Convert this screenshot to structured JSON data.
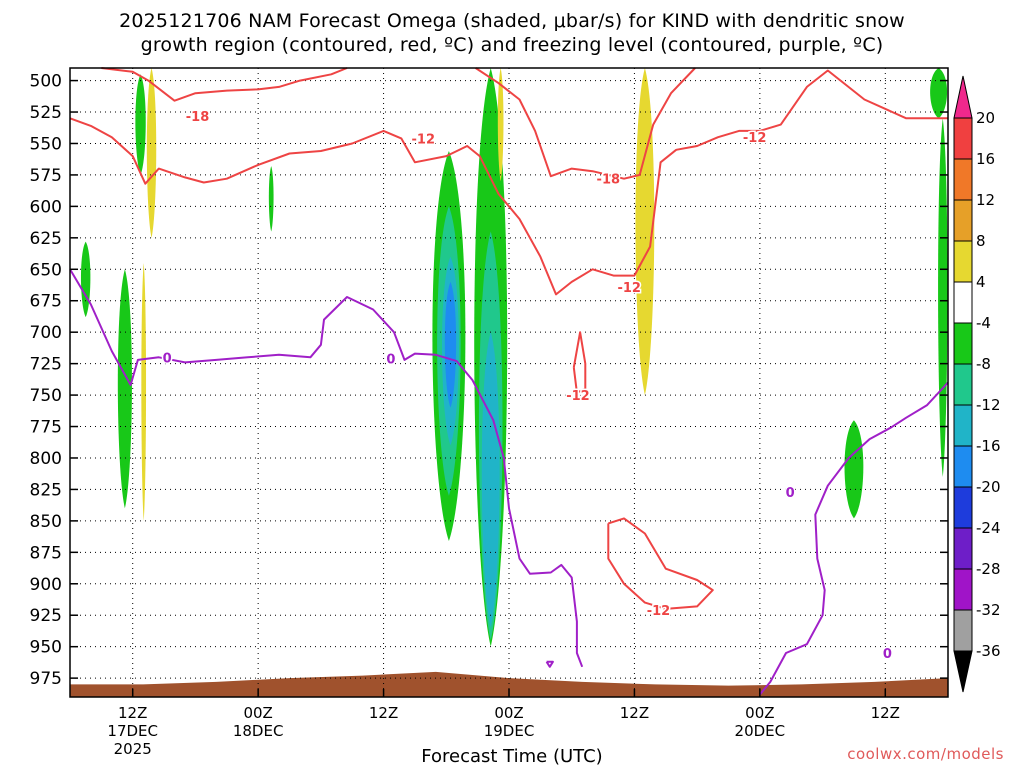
{
  "title_line1": "2025121706 NAM Forecast Omega (shaded, μbar/s) for KIND with dendritic snow",
  "title_line2": "growth region (contoured, red, ºC) and freezing level (contoured, purple, ºC)",
  "credit": "coolwx.com/models",
  "chart_data": {
    "type": "heatmap",
    "title": "2025121706 NAM Forecast Omega (shaded, μbar/s) for KIND with dendritic snow growth region (contoured, red, ºC) and freezing level (contoured, purple, ºC)",
    "xlabel": "Forecast Time (UTC)",
    "ylabel": "",
    "x_unit": "hours since 2025121706",
    "xlim": [
      0,
      84
    ],
    "ylim": [
      990,
      490
    ],
    "y_scale": "pressure (hPa), inverted",
    "grid": true,
    "y_ticks": [
      500,
      525,
      550,
      575,
      600,
      625,
      650,
      675,
      700,
      725,
      750,
      775,
      800,
      825,
      850,
      875,
      900,
      925,
      950,
      975
    ],
    "x_ticks": [
      {
        "hour": 6,
        "lines": [
          "12Z",
          "17DEC",
          "2025"
        ]
      },
      {
        "hour": 18,
        "lines": [
          "00Z",
          "18DEC"
        ]
      },
      {
        "hour": 30,
        "lines": [
          "12Z"
        ]
      },
      {
        "hour": 42,
        "lines": [
          "00Z",
          "19DEC"
        ]
      },
      {
        "hour": 54,
        "lines": [
          "12Z"
        ]
      },
      {
        "hour": 66,
        "lines": [
          "00Z",
          "20DEC"
        ]
      },
      {
        "hour": 78,
        "lines": [
          "12Z"
        ]
      }
    ],
    "colorbar": {
      "levels": [
        -36,
        -32,
        -28,
        -24,
        -20,
        -16,
        -12,
        -8,
        -4,
        4,
        8,
        12,
        16,
        20
      ],
      "labels": [
        "20",
        "16",
        "12",
        "8",
        "4",
        "-4",
        "-8",
        "-12",
        "-16",
        "-20",
        "-24",
        "-28",
        "-32",
        "-36"
      ],
      "colors": {
        "above_20": "#f0288c",
        "16_20": "#f04040",
        "12_16": "#f07828",
        "8_12": "#e6a028",
        "4_8": "#e6d830",
        "-4_4": "#ffffff",
        "-8_-4": "#18c818",
        "-12_-8": "#20c88c",
        "-16_-12": "#20b4c8",
        "-20_-16": "#1e8cf0",
        "-24_-20": "#1e3cdc",
        "-28_-24": "#6e1ec8",
        "-32_-28": "#a014c8",
        "-36_-32": "#a0a0a0",
        "below_-36": "#000000"
      }
    },
    "omega_regions": [
      {
        "color": "#18c818",
        "x": [
          6.2,
          7.3
        ],
        "p": [
          495,
          575
        ],
        "note": "-4 to -8"
      },
      {
        "color": "#18c818",
        "x": [
          1.0,
          2.0
        ],
        "p": [
          628,
          688
        ]
      },
      {
        "color": "#18c818",
        "x": [
          4.5,
          6.0
        ],
        "p": [
          650,
          840
        ]
      },
      {
        "color": "#18c818",
        "x": [
          19.0,
          19.5
        ],
        "p": [
          568,
          620
        ]
      },
      {
        "color": "#18c818",
        "x": [
          34.5,
          38.0
        ],
        "p": [
          556,
          866
        ]
      },
      {
        "color": "#20c88c",
        "x": [
          35.0,
          37.5
        ],
        "p": [
          600,
          830
        ]
      },
      {
        "color": "#20b4c8",
        "x": [
          35.5,
          37.3
        ],
        "p": [
          640,
          790
        ]
      },
      {
        "color": "#1e8cf0",
        "x": [
          35.8,
          37.0
        ],
        "p": [
          660,
          760
        ]
      },
      {
        "color": "#18c818",
        "x": [
          38.5,
          42.0
        ],
        "p": [
          490,
          950
        ]
      },
      {
        "color": "#20c88c",
        "x": [
          39.0,
          41.5
        ],
        "p": [
          620,
          945
        ]
      },
      {
        "color": "#20b4c8",
        "x": [
          39.3,
          41.2
        ],
        "p": [
          700,
          935
        ]
      },
      {
        "color": "#18c818",
        "x": [
          74.0,
          76.0
        ],
        "p": [
          770,
          848
        ]
      },
      {
        "color": "#18c818",
        "x": [
          82.2,
          84.0
        ],
        "p": [
          490,
          530
        ]
      },
      {
        "color": "#18c818",
        "x": [
          83.0,
          84.0
        ],
        "p": [
          530,
          815
        ]
      },
      {
        "color": "#e6d830",
        "x": [
          7.3,
          8.3
        ],
        "p": [
          490,
          625
        ]
      },
      {
        "color": "#e6d830",
        "x": [
          6.8,
          7.3
        ],
        "p": [
          645,
          850
        ]
      },
      {
        "color": "#e6d830",
        "x": [
          54.0,
          56.0
        ],
        "p": [
          490,
          750
        ]
      },
      {
        "color": "#e6d830",
        "x": [
          40.9,
          41.5
        ],
        "p": [
          490,
          580
        ]
      }
    ],
    "ground": {
      "color": "#a0522d",
      "top_p": [
        980,
        980,
        978,
        975,
        973,
        970,
        975,
        978,
        980,
        981,
        980,
        978,
        975
      ]
    },
    "series": [
      {
        "name": "-12",
        "color": "#ee4444",
        "points": [
          [
            0,
            530
          ],
          [
            2,
            536
          ],
          [
            4,
            545
          ],
          [
            6,
            560
          ],
          [
            7.2,
            582
          ],
          [
            8.5,
            570
          ],
          [
            11,
            577
          ],
          [
            12.8,
            581
          ],
          [
            15,
            578
          ],
          [
            18,
            567
          ],
          [
            21,
            558
          ],
          [
            24,
            556
          ],
          [
            27,
            550
          ],
          [
            30,
            540
          ],
          [
            31.7,
            546
          ],
          [
            33,
            565
          ],
          [
            36,
            560
          ],
          [
            38,
            552
          ],
          [
            39.2,
            560
          ],
          [
            41,
            590
          ],
          [
            43,
            610
          ],
          [
            45,
            640
          ],
          [
            46.5,
            670
          ],
          [
            48,
            660
          ],
          [
            50,
            650
          ],
          [
            52,
            655
          ],
          [
            54,
            655
          ],
          [
            55.5,
            632
          ],
          [
            56.5,
            565
          ],
          [
            58,
            555
          ],
          [
            60,
            552
          ],
          [
            62,
            545
          ],
          [
            64,
            540
          ],
          [
            66,
            540
          ],
          [
            68,
            535
          ],
          [
            70.5,
            505
          ],
          [
            72.5,
            492
          ],
          [
            76,
            515
          ],
          [
            80,
            530
          ],
          [
            84,
            530
          ]
        ]
      },
      {
        "name": "-18",
        "color": "#ee4444",
        "points": [
          [
            3,
            490
          ],
          [
            6,
            493
          ],
          [
            7.5,
            500
          ],
          [
            10,
            516
          ],
          [
            12,
            510
          ],
          [
            15,
            508
          ],
          [
            18,
            507
          ],
          [
            20,
            505
          ],
          [
            22,
            500
          ],
          [
            25,
            495
          ],
          [
            26.5,
            490
          ]
        ]
      },
      {
        "name": "-18",
        "color": "#ee4444",
        "points": [
          [
            38.8,
            490
          ],
          [
            41,
            502
          ],
          [
            43,
            515
          ],
          [
            44.5,
            540
          ],
          [
            46,
            576
          ],
          [
            48,
            570
          ],
          [
            50,
            572
          ],
          [
            53,
            578
          ],
          [
            54.5,
            575
          ],
          [
            55.8,
            535
          ],
          [
            57.5,
            510
          ],
          [
            59.8,
            490
          ]
        ]
      },
      {
        "name": "-12",
        "color": "#ee4444",
        "points": [
          [
            48.2,
            728
          ],
          [
            48.8,
            700
          ],
          [
            49.3,
            725
          ],
          [
            49.3,
            745
          ],
          [
            48.5,
            748
          ],
          [
            48.2,
            728
          ]
        ]
      },
      {
        "name": "-12",
        "color": "#ee4444",
        "points": [
          [
            51.5,
            852
          ],
          [
            53,
            848
          ],
          [
            55,
            860
          ],
          [
            57,
            888
          ],
          [
            60,
            897
          ],
          [
            61.5,
            905
          ],
          [
            60,
            918
          ],
          [
            57,
            920
          ],
          [
            55,
            915
          ],
          [
            53,
            900
          ],
          [
            51.5,
            880
          ],
          [
            51.5,
            852
          ]
        ]
      },
      {
        "name": "0",
        "color": "#a020c8",
        "points": [
          [
            0,
            650
          ],
          [
            2,
            678
          ],
          [
            4,
            715
          ],
          [
            5.8,
            742
          ],
          [
            6.5,
            722
          ],
          [
            8.5,
            720
          ],
          [
            11,
            724
          ],
          [
            14,
            722
          ],
          [
            17,
            720
          ],
          [
            20,
            718
          ],
          [
            23,
            720
          ],
          [
            24,
            710
          ],
          [
            24.3,
            690
          ],
          [
            26.5,
            672
          ],
          [
            29,
            682
          ],
          [
            31,
            700
          ],
          [
            32,
            722
          ],
          [
            33,
            717
          ],
          [
            35,
            718
          ],
          [
            37,
            723
          ],
          [
            38.5,
            738
          ],
          [
            40.5,
            770
          ],
          [
            41.5,
            800
          ],
          [
            42,
            840
          ],
          [
            43,
            880
          ],
          [
            44,
            892
          ],
          [
            46,
            891
          ],
          [
            47,
            885
          ],
          [
            48,
            895
          ],
          [
            48.5,
            930
          ],
          [
            48.5,
            955
          ],
          [
            49,
            966
          ]
        ]
      },
      {
        "name": "0",
        "color": "#a020c8",
        "points": [
          [
            66,
            988
          ],
          [
            67,
            978
          ],
          [
            68.5,
            955
          ],
          [
            70.5,
            948
          ],
          [
            72,
            925
          ],
          [
            72.2,
            905
          ],
          [
            71.5,
            880
          ],
          [
            71.3,
            845
          ],
          [
            72.5,
            822
          ],
          [
            74.5,
            800
          ],
          [
            76.5,
            785
          ],
          [
            78.5,
            776
          ],
          [
            80,
            768
          ],
          [
            82,
            758
          ],
          [
            84,
            740
          ]
        ]
      },
      {
        "name": "0",
        "color": "#a020c8",
        "points": [
          [
            45.6,
            962
          ],
          [
            46.2,
            962
          ],
          [
            45.9,
            966
          ],
          [
            45.6,
            962
          ]
        ]
      }
    ],
    "contour_labels": [
      {
        "text": "-18",
        "x": 12.2,
        "p": 528
      },
      {
        "text": "-12",
        "x": 33.8,
        "p": 546
      },
      {
        "text": "-18",
        "x": 51.5,
        "p": 578
      },
      {
        "text": "-12",
        "x": 53.5,
        "p": 664
      },
      {
        "text": "-12",
        "x": 65.5,
        "p": 545
      },
      {
        "text": "-12",
        "x": 48.6,
        "p": 750
      },
      {
        "text": "-12",
        "x": 56.3,
        "p": 921
      },
      {
        "text": "0",
        "x": 9.3,
        "p": 720
      },
      {
        "text": "0",
        "x": 30.7,
        "p": 721
      },
      {
        "text": "0",
        "x": 68.9,
        "p": 827
      },
      {
        "text": "0",
        "x": 78.2,
        "p": 955
      }
    ]
  }
}
